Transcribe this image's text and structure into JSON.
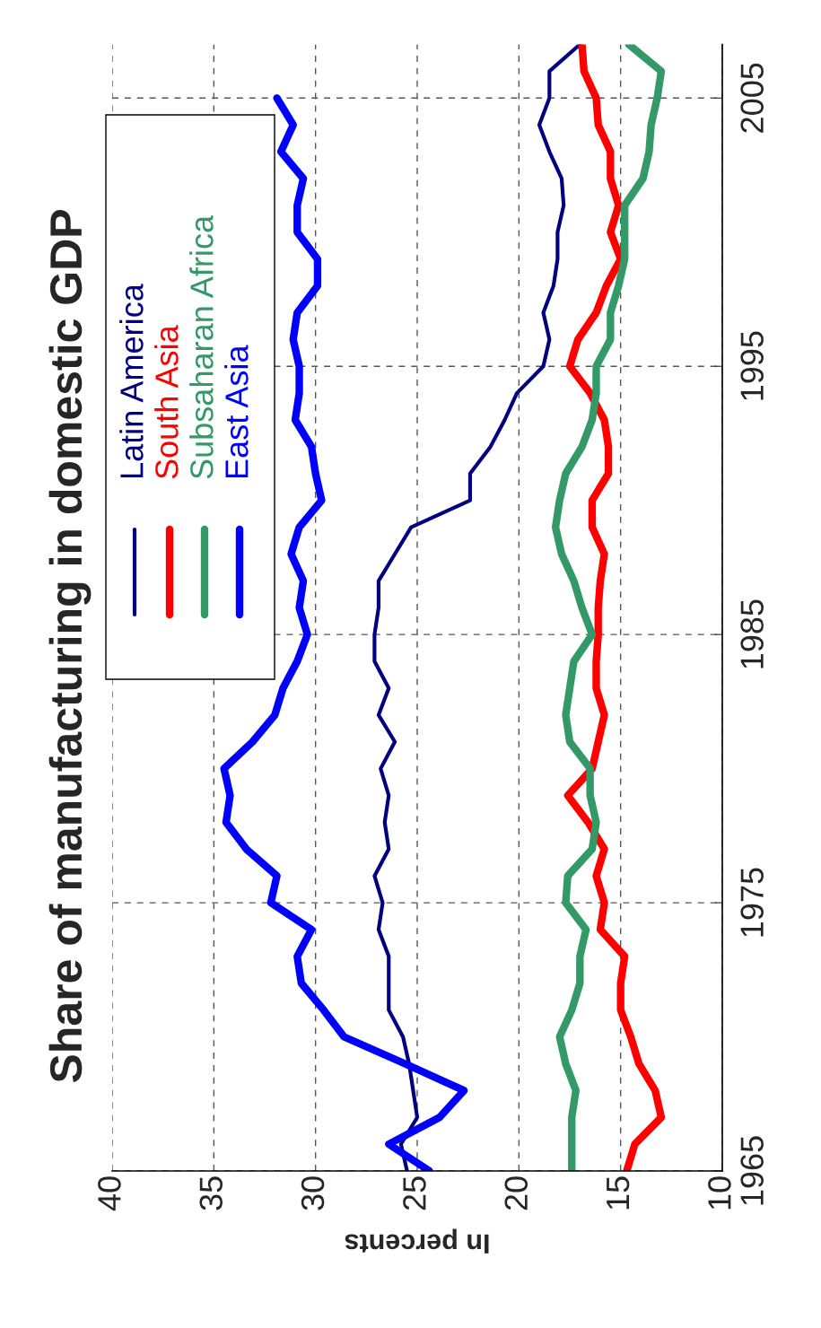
{
  "chart_data": {
    "type": "line",
    "title": "Share of manufacturing in domestic GDP",
    "xlabel": "In percents",
    "orientation": "horizontal",
    "x": [
      1965,
      1966,
      1967,
      1968,
      1969,
      1970,
      1971,
      1972,
      1973,
      1974,
      1975,
      1976,
      1977,
      1978,
      1979,
      1980,
      1981,
      1982,
      1983,
      1984,
      1985,
      1986,
      1987,
      1988,
      1989,
      1990,
      1991,
      1992,
      1993,
      1994,
      1995,
      1996,
      1997,
      1998,
      1999,
      2000,
      2001,
      2002,
      2003,
      2004,
      2005,
      2006,
      2007
    ],
    "series": [
      {
        "name": "Latin America",
        "color": "#000080",
        "values": [
          25.5,
          25.8,
          25.0,
          25.2,
          25.4,
          25.7,
          26.4,
          26.4,
          26.4,
          26.9,
          26.7,
          27.1,
          26.4,
          26.6,
          26.4,
          26.8,
          26.1,
          26.9,
          26.4,
          27.1,
          27.1,
          26.9,
          26.9,
          26.1,
          25.3,
          22.4,
          22.4,
          21.4,
          20.7,
          20.1,
          18.8,
          18.5,
          18.8,
          18.3,
          18.1,
          18.1,
          17.8,
          17.9,
          18.5,
          19.0,
          18.5,
          18.5,
          17.0
        ]
      },
      {
        "name": "South Asia",
        "color": "#ff0000",
        "values": [
          14.7,
          14.3,
          13.0,
          13.3,
          14.1,
          14.5,
          15.0,
          15.0,
          14.8,
          16.0,
          15.8,
          16.2,
          15.8,
          16.6,
          17.6,
          16.4,
          16.1,
          15.8,
          16.2,
          16.2,
          16.1,
          16.1,
          16.0,
          15.8,
          16.4,
          16.4,
          15.6,
          15.6,
          15.8,
          16.5,
          17.5,
          17.1,
          16.2,
          15.7,
          15.0,
          15.5,
          15.1,
          15.5,
          15.5,
          16.1,
          16.2,
          16.8,
          16.9
        ]
      },
      {
        "name": "Subsaharan Africa",
        "color": "#339966",
        "values": [
          17.4,
          17.4,
          17.4,
          17.2,
          17.7,
          18.0,
          17.4,
          17.0,
          17.0,
          16.7,
          17.7,
          17.6,
          16.4,
          16.2,
          16.5,
          16.5,
          17.5,
          17.7,
          17.5,
          17.3,
          16.4,
          16.9,
          17.3,
          17.9,
          18.2,
          18.0,
          17.7,
          16.9,
          16.4,
          16.2,
          16.2,
          15.5,
          15.5,
          15.1,
          14.8,
          14.8,
          14.8,
          13.9,
          13.6,
          13.5,
          13.2,
          13.0,
          14.6
        ]
      },
      {
        "name": "East Asia",
        "color": "#0000ff",
        "values": [
          24.4,
          26.4,
          23.9,
          22.7,
          25.6,
          28.6,
          29.6,
          30.7,
          30.9,
          30.2,
          32.2,
          31.9,
          33.4,
          34.4,
          34.2,
          34.5,
          33.1,
          32.0,
          31.6,
          30.9,
          30.4,
          30.8,
          30.6,
          31.2,
          30.8,
          29.7,
          30.0,
          30.2,
          31.0,
          30.8,
          30.8,
          31.1,
          30.9,
          29.9,
          29.9,
          30.9,
          30.9,
          30.6,
          31.7,
          31.1,
          31.9,
          null,
          null
        ]
      }
    ],
    "ylim": [
      1965,
      2007
    ],
    "yticks": [
      1965,
      1975,
      1985,
      1995,
      2005
    ],
    "xlim": [
      40,
      10
    ],
    "xticks": [
      10,
      15,
      20,
      25,
      30,
      35,
      40
    ],
    "grid": true,
    "legend": "top left"
  }
}
